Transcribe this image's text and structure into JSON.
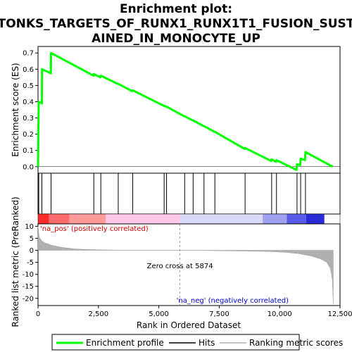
{
  "chart_data": {
    "type": "line",
    "title_lines": [
      "Enrichment plot:",
      "TONKS_TARGETS_OF_RUNX1_RUNX1T1_FUSION_SUST",
      "AINED_IN_MONOCYTE_UP"
    ],
    "xlabel": "Rank in Ordered Dataset",
    "xlim": [
      0,
      12500
    ],
    "x_ticks": [
      0,
      2500,
      5000,
      7500,
      10000,
      12500
    ],
    "x_tick_labels": [
      "0",
      "2,500",
      "5,000",
      "7,500",
      "10,000",
      "12,500"
    ],
    "es_panel": {
      "ylabel": "Enrichment score (ES)",
      "ylim": [
        -0.04,
        0.74
      ],
      "y_ticks": [
        0.0,
        0.1,
        0.2,
        0.3,
        0.4,
        0.5,
        0.6,
        0.7
      ],
      "y_tick_labels": [
        "0.0",
        "0.1",
        "0.2",
        "0.3",
        "0.4",
        "0.5",
        "0.6",
        "0.7"
      ],
      "series": [
        {
          "name": "Enrichment profile",
          "color": "#00ff00",
          "x": [
            0,
            30,
            160,
            165,
            530,
            540,
            2300,
            2310,
            2580,
            2600,
            3300,
            3320,
            3900,
            3920,
            5200,
            5220,
            5300,
            5320,
            6050,
            6070,
            6400,
            6420,
            6850,
            6870,
            7300,
            7320,
            8550,
            8570,
            9650,
            9670,
            9850,
            9870,
            10700,
            10720,
            10850,
            10870,
            11050,
            11070,
            12200
          ],
          "y": [
            0.0,
            0.4,
            0.39,
            0.6,
            0.575,
            0.7,
            0.56,
            0.57,
            0.55,
            0.56,
            0.51,
            0.51,
            0.465,
            0.47,
            0.375,
            0.375,
            0.37,
            0.37,
            0.31,
            0.31,
            0.285,
            0.285,
            0.25,
            0.25,
            0.215,
            0.215,
            0.11,
            0.115,
            0.035,
            0.045,
            0.03,
            0.04,
            -0.02,
            0.015,
            0.01,
            0.05,
            0.04,
            0.09,
            0.0
          ]
        }
      ]
    },
    "hits": {
      "name": "Hits",
      "positions": [
        30,
        160,
        540,
        2310,
        2600,
        3320,
        3920,
        5220,
        5320,
        6070,
        6420,
        6870,
        7320,
        8570,
        9670,
        9870,
        10720,
        10870,
        11070
      ]
    },
    "heatmap_bar": {
      "colors": [
        "#ff2a2a",
        "#ff6b6b",
        "#ff9a9a",
        "#ffc8e6",
        "#d8d8f8",
        "#a0a0f0",
        "#5a5ae8",
        "#2a2ad8"
      ],
      "breaks": [
        0,
        450,
        1300,
        2800,
        5874,
        9300,
        10300,
        11100,
        11850,
        12250
      ]
    },
    "metric_panel": {
      "ylabel": "Ranked list metric (PreRanked)",
      "ylim": [
        -23,
        11
      ],
      "y_ticks": [
        10,
        5,
        0,
        -5,
        -10,
        -15,
        -20
      ],
      "y_tick_labels": [
        "10",
        "5",
        "0",
        "-5",
        "-10",
        "-15",
        "-20"
      ],
      "series": [
        {
          "name": "Ranking metric scores",
          "color": "#b0b0b0",
          "x": [
            0,
            50,
            150,
            300,
            600,
            1000,
            1500,
            2000,
            2500,
            3500,
            4500,
            5874,
            7000,
            8500,
            9500,
            10200,
            10800,
            11300,
            11700,
            11950,
            12100,
            12180,
            12220
          ],
          "y": [
            10.0,
            5.5,
            4.0,
            3.0,
            2.0,
            1.2,
            0.6,
            0.35,
            0.2,
            0.08,
            0.03,
            0.0,
            -0.1,
            -0.3,
            -0.5,
            -0.8,
            -1.4,
            -2.4,
            -3.6,
            -5.0,
            -7.5,
            -12,
            -22.5
          ]
        }
      ],
      "annotations": {
        "pos_label": "'na_pos' (positively correlated)",
        "neg_label": "'na_neg' (negatively correlated)",
        "zero_cross_label": "Zero cross at 5874",
        "zero_cross_x": 5874,
        "pos_color": "#cc0000",
        "neg_color": "#0000cc"
      }
    },
    "legend": {
      "placement": "bottom",
      "items": [
        {
          "label": "Enrichment profile",
          "color": "#00ff00",
          "kind": "thick-line"
        },
        {
          "label": "Hits",
          "color": "#000000",
          "kind": "line"
        },
        {
          "label": "Ranking metric scores",
          "color": "#b0b0b0",
          "kind": "line"
        }
      ]
    }
  }
}
